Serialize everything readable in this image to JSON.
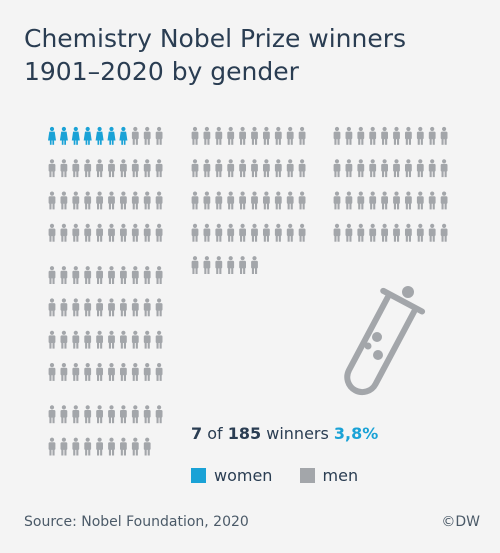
{
  "title": "Chemistry Nobel Prize winners 1901–2020 by gender",
  "stat": {
    "women": "7",
    "of": "of",
    "total": "185",
    "winners": "winners",
    "pct": "3,8%"
  },
  "legend": {
    "women": "women",
    "men": "men"
  },
  "source": "Source: Nobel Foundation, 2020",
  "brand": "©DW",
  "colors": {
    "women": "#1aa2d6",
    "men": "#a3a6aa",
    "tube": "#a3a6aa",
    "title": "#2a3d52"
  },
  "icon": "test-tube-icon",
  "chart_data": {
    "type": "pictogram",
    "title": "Chemistry Nobel Prize winners 1901–2020 by gender",
    "categories": [
      "women",
      "men"
    ],
    "values": [
      7,
      178
    ],
    "total": 185,
    "women_share_percent": 3.8
  }
}
